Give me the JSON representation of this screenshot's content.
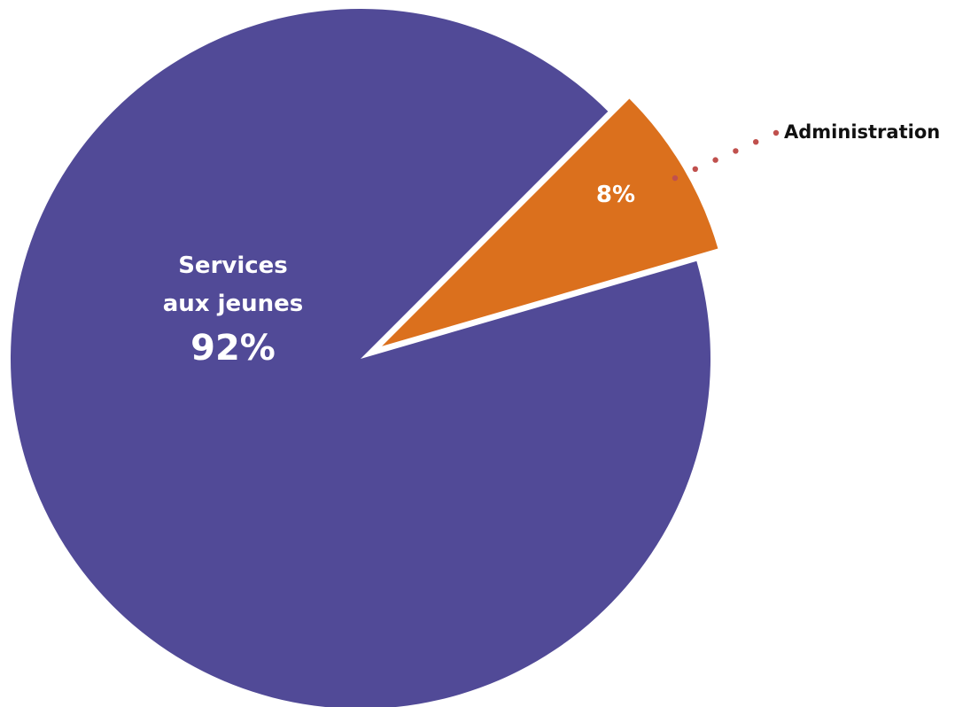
{
  "chart_data": {
    "type": "pie",
    "slices": [
      {
        "name_lines": [
          "Services",
          "aux jeunes"
        ],
        "value": 92,
        "value_label": "92%",
        "color": "#514a97"
      },
      {
        "name_lines": [
          "Administration"
        ],
        "value": 8,
        "value_label": "8%",
        "color": "#db701d",
        "exploded": true
      }
    ],
    "leader_line_color": "#c0504d",
    "legend": "none"
  }
}
